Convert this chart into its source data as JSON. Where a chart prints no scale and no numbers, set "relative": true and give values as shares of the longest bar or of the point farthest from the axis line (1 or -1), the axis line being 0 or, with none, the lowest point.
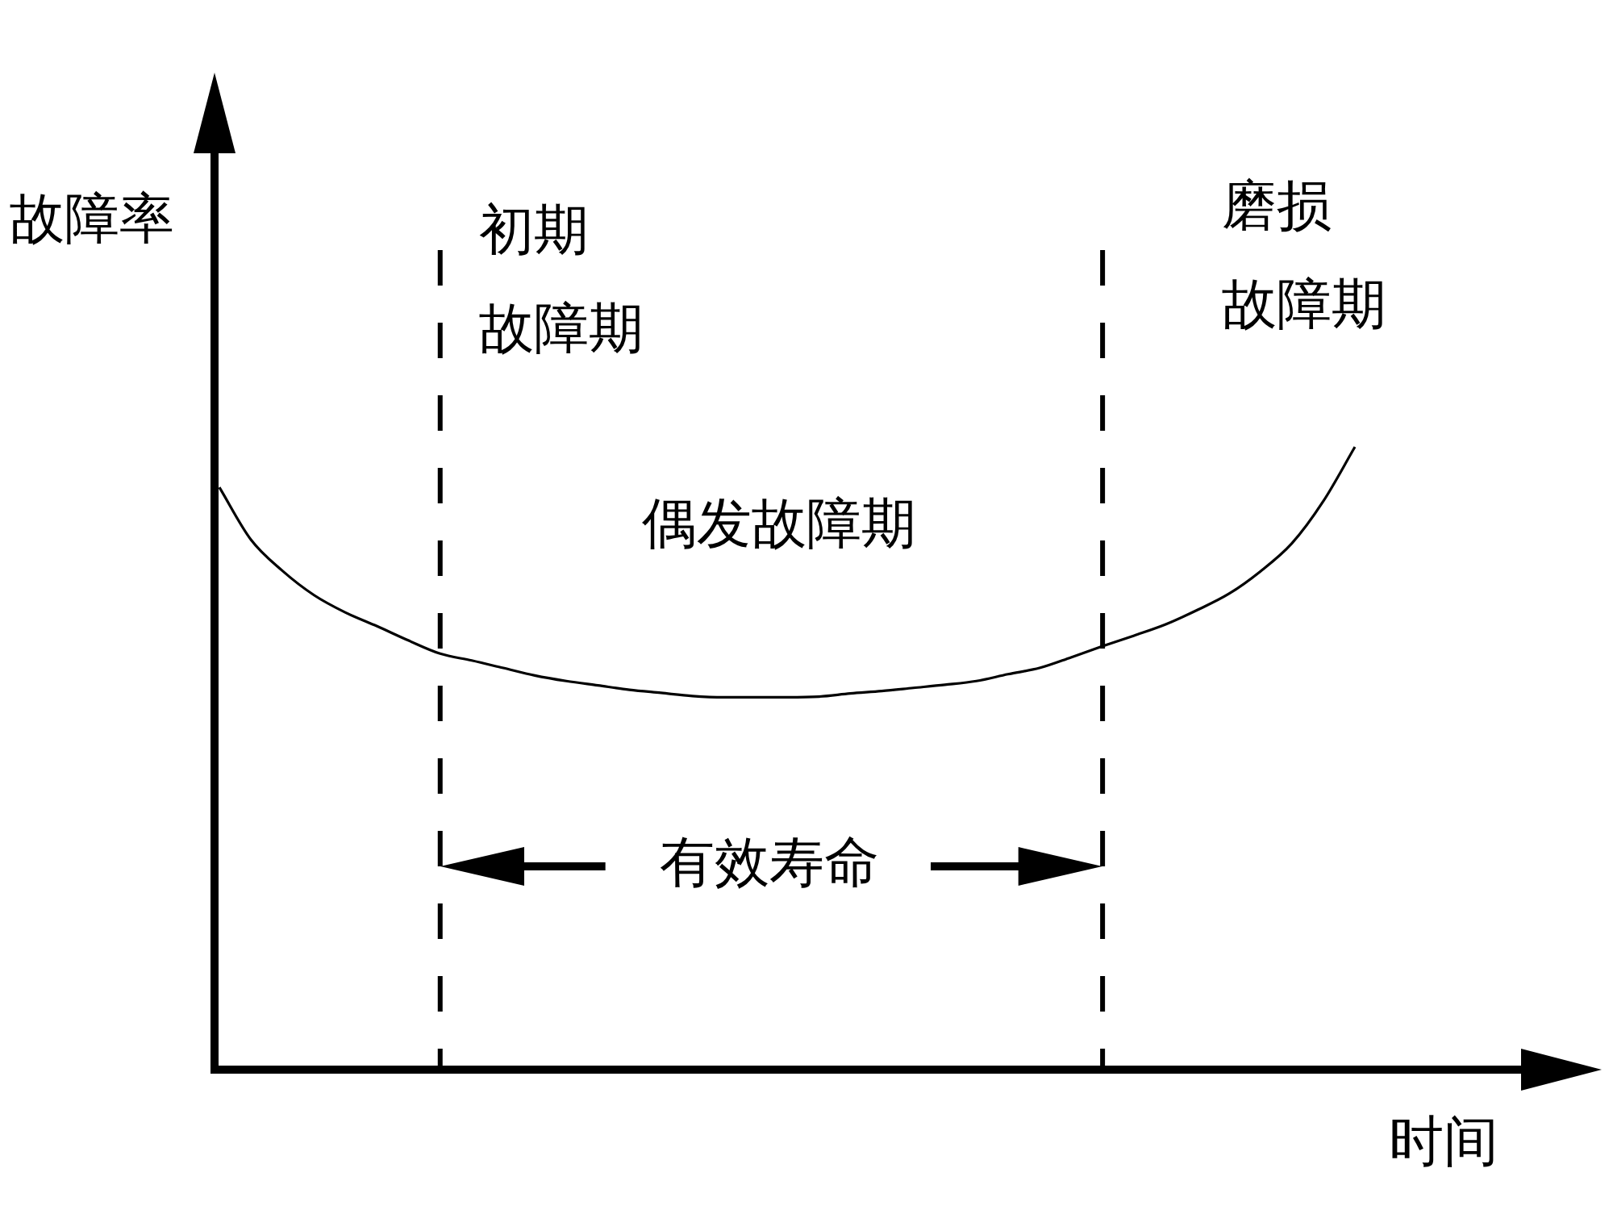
{
  "chart_data": {
    "type": "line",
    "xlabel": "时间",
    "ylabel": "故障率",
    "categories": [
      null,
      null,
      null,
      null,
      null,
      null,
      null,
      null,
      null,
      null,
      null,
      null,
      null,
      null,
      null,
      null,
      null,
      null,
      null,
      null,
      null,
      null,
      null,
      null,
      null,
      null,
      null,
      null,
      null,
      null,
      null,
      null,
      null,
      null,
      null,
      null,
      null
    ],
    "series": [
      {
        "color": "#000000",
        "values": [
          0.935,
          0.851,
          0.801,
          0.762,
          0.734,
          0.712,
          0.689,
          0.668,
          0.657,
          0.645,
          0.633,
          0.624,
          0.617,
          0.61,
          0.605,
          0.6,
          0.598,
          0.598,
          0.598,
          0.599,
          0.604,
          0.608,
          0.613,
          0.618,
          0.624,
          0.635,
          0.645,
          0.662,
          0.68,
          0.697,
          0.715,
          0.738,
          0.764,
          0.8,
          0.845,
          0.913,
          1
        ]
      }
    ],
    "relative": true,
    "annotations": [
      "初期故障期",
      "偶发故障期",
      "磨损故障期",
      "有效寿命"
    ],
    "grid": false,
    "legend": false,
    "marker": "none",
    "line_style": "solid"
  }
}
